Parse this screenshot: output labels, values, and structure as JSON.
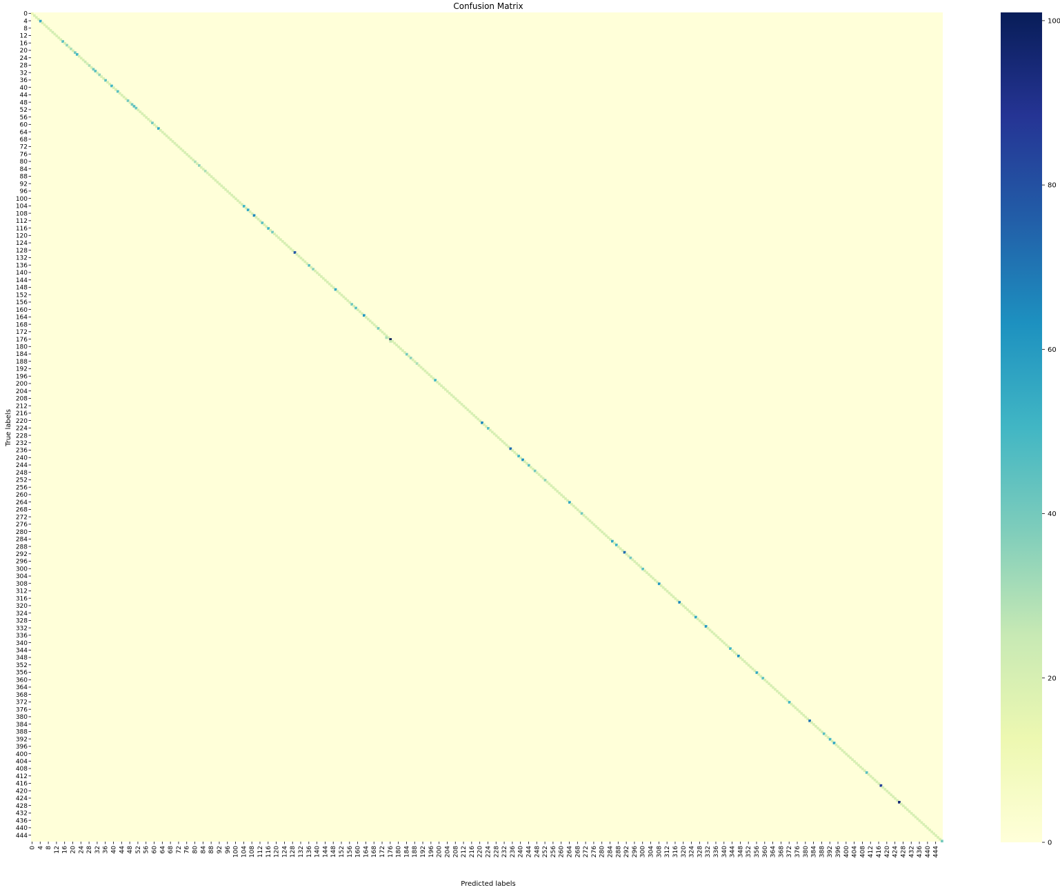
{
  "chart_data": {
    "type": "heatmap",
    "title": "Confusion Matrix",
    "xlabel": "Predicted labels",
    "ylabel": "True labels",
    "n_classes": 448,
    "tick_step": 4,
    "tick_labels": [
      "0",
      "4",
      "8",
      "12",
      "16",
      "20",
      "24",
      "28",
      "32",
      "36",
      "40",
      "44",
      "48",
      "52",
      "56",
      "60",
      "64",
      "68",
      "72",
      "76",
      "80",
      "84",
      "88",
      "92",
      "96",
      "100",
      "104",
      "108",
      "112",
      "116",
      "120",
      "124",
      "128",
      "132",
      "136",
      "140",
      "144",
      "148",
      "152",
      "156",
      "160",
      "164",
      "168",
      "172",
      "176",
      "180",
      "184",
      "188",
      "192",
      "196",
      "200",
      "204",
      "208",
      "212",
      "216",
      "220",
      "224",
      "228",
      "232",
      "236",
      "240",
      "244",
      "248",
      "252",
      "256",
      "260",
      "264",
      "268",
      "272",
      "276",
      "280",
      "284",
      "288",
      "292",
      "296",
      "300",
      "304",
      "308",
      "312",
      "316",
      "320",
      "324",
      "328",
      "332",
      "336",
      "340",
      "344",
      "348",
      "352",
      "356",
      "360",
      "364",
      "368",
      "372",
      "376",
      "380",
      "384",
      "388",
      "392",
      "396",
      "400",
      "404",
      "408",
      "412",
      "416",
      "420",
      "424",
      "428",
      "432",
      "436",
      "440",
      "444"
    ],
    "colormap": "YlGnBu",
    "value_range": [
      0,
      101
    ],
    "colorbar": {
      "ticks": [
        0,
        20,
        40,
        60,
        80,
        100
      ],
      "tick_labels": [
        "0",
        "20",
        "40",
        "60",
        "80",
        "100"
      ],
      "stops": [
        {
          "value": 0,
          "color": "#ffffd9"
        },
        {
          "value": 12.6,
          "color": "#edf8b1"
        },
        {
          "value": 25.3,
          "color": "#c7e9b4"
        },
        {
          "value": 37.9,
          "color": "#7fcdbb"
        },
        {
          "value": 50.5,
          "color": "#41b6c4"
        },
        {
          "value": 63.1,
          "color": "#1d91c0"
        },
        {
          "value": 75.8,
          "color": "#225ea8"
        },
        {
          "value": 88.4,
          "color": "#253494"
        },
        {
          "value": 101,
          "color": "#081d58"
        }
      ]
    },
    "diagonal_default": 20,
    "diagonal_values": [
      {
        "i": 0,
        "v": 12
      },
      {
        "i": 4,
        "v": 55
      },
      {
        "i": 6,
        "v": 18
      },
      {
        "i": 10,
        "v": 22
      },
      {
        "i": 15,
        "v": 45
      },
      {
        "i": 17,
        "v": 35
      },
      {
        "i": 19,
        "v": 30
      },
      {
        "i": 21,
        "v": 40
      },
      {
        "i": 22,
        "v": 50
      },
      {
        "i": 26,
        "v": 25
      },
      {
        "i": 28,
        "v": 30
      },
      {
        "i": 30,
        "v": 40
      },
      {
        "i": 31,
        "v": 45
      },
      {
        "i": 33,
        "v": 35
      },
      {
        "i": 36,
        "v": 45
      },
      {
        "i": 39,
        "v": 50
      },
      {
        "i": 42,
        "v": 45
      },
      {
        "i": 47,
        "v": 40
      },
      {
        "i": 49,
        "v": 40
      },
      {
        "i": 50,
        "v": 45
      },
      {
        "i": 51,
        "v": 42
      },
      {
        "i": 59,
        "v": 40
      },
      {
        "i": 62,
        "v": 55
      },
      {
        "i": 80,
        "v": 30
      },
      {
        "i": 82,
        "v": 35
      },
      {
        "i": 85,
        "v": 30
      },
      {
        "i": 94,
        "v": 20
      },
      {
        "i": 104,
        "v": 50
      },
      {
        "i": 106,
        "v": 55
      },
      {
        "i": 109,
        "v": 65
      },
      {
        "i": 113,
        "v": 45
      },
      {
        "i": 116,
        "v": 50
      },
      {
        "i": 118,
        "v": 40
      },
      {
        "i": 129,
        "v": 78
      },
      {
        "i": 136,
        "v": 45
      },
      {
        "i": 138,
        "v": 35
      },
      {
        "i": 149,
        "v": 55
      },
      {
        "i": 157,
        "v": 40
      },
      {
        "i": 159,
        "v": 45
      },
      {
        "i": 163,
        "v": 60
      },
      {
        "i": 170,
        "v": 40
      },
      {
        "i": 176,
        "v": 101
      },
      {
        "i": 184,
        "v": 40
      },
      {
        "i": 186,
        "v": 35
      },
      {
        "i": 189,
        "v": 30
      },
      {
        "i": 198,
        "v": 50
      },
      {
        "i": 221,
        "v": 65
      },
      {
        "i": 224,
        "v": 45
      },
      {
        "i": 235,
        "v": 72
      },
      {
        "i": 239,
        "v": 50
      },
      {
        "i": 241,
        "v": 62
      },
      {
        "i": 244,
        "v": 45
      },
      {
        "i": 247,
        "v": 40
      },
      {
        "i": 252,
        "v": 35
      },
      {
        "i": 264,
        "v": 55
      },
      {
        "i": 270,
        "v": 40
      },
      {
        "i": 285,
        "v": 55
      },
      {
        "i": 287,
        "v": 50
      },
      {
        "i": 291,
        "v": 72
      },
      {
        "i": 294,
        "v": 40
      },
      {
        "i": 300,
        "v": 45
      },
      {
        "i": 308,
        "v": 60
      },
      {
        "i": 318,
        "v": 65
      },
      {
        "i": 326,
        "v": 55
      },
      {
        "i": 331,
        "v": 60
      },
      {
        "i": 343,
        "v": 50
      },
      {
        "i": 347,
        "v": 62
      },
      {
        "i": 356,
        "v": 55
      },
      {
        "i": 359,
        "v": 45
      },
      {
        "i": 372,
        "v": 50
      },
      {
        "i": 382,
        "v": 70
      },
      {
        "i": 389,
        "v": 45
      },
      {
        "i": 392,
        "v": 50
      },
      {
        "i": 394,
        "v": 55
      },
      {
        "i": 410,
        "v": 45
      },
      {
        "i": 417,
        "v": 85
      },
      {
        "i": 426,
        "v": 95
      },
      {
        "i": 447,
        "v": 40
      }
    ],
    "off_diagonal_values": [
      {
        "row": 175,
        "col": 174,
        "v": 30
      },
      {
        "row": 177,
        "col": 176,
        "v": 25
      }
    ]
  }
}
